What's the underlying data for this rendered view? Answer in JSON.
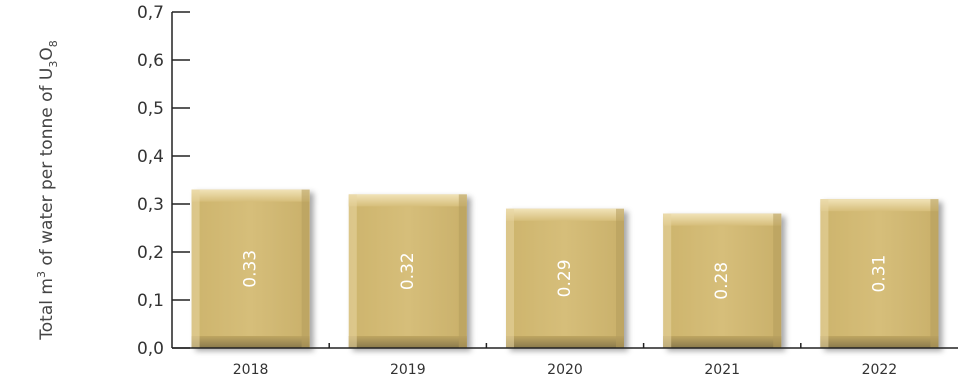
{
  "chart_data": {
    "type": "bar",
    "categories": [
      "2018",
      "2019",
      "2020",
      "2021",
      "2022"
    ],
    "values": [
      0.33,
      0.32,
      0.29,
      0.28,
      0.31
    ],
    "value_labels": [
      "0.33",
      "0.32",
      "0.29",
      "0.28",
      "0.31"
    ],
    "ylim": [
      0,
      0.7
    ],
    "yticks": [
      0.0,
      0.1,
      0.2,
      0.3,
      0.4,
      0.5,
      0.6,
      0.7
    ],
    "ytick_labels": [
      "0,0",
      "0,1",
      "0,2",
      "0,3",
      "0,4",
      "0,5",
      "0,6",
      "0,7"
    ],
    "ylabel": {
      "part1": "Total m",
      "sup": "3",
      "part2": " of water per tonne of U",
      "sub1": "3",
      "part3": "O",
      "sub2": "8"
    },
    "grid": false,
    "colors": {
      "bar": "#d4bb74",
      "bar_light": "#ead9a8",
      "bar_shadow": "#8a7a4c",
      "axis": "#222222"
    }
  }
}
